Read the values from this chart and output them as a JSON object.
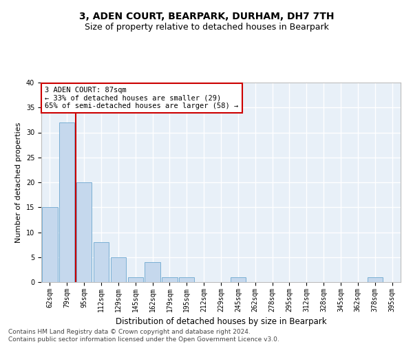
{
  "title": "3, ADEN COURT, BEARPARK, DURHAM, DH7 7TH",
  "subtitle": "Size of property relative to detached houses in Bearpark",
  "xlabel": "Distribution of detached houses by size in Bearpark",
  "ylabel": "Number of detached properties",
  "categories": [
    "62sqm",
    "79sqm",
    "95sqm",
    "112sqm",
    "129sqm",
    "145sqm",
    "162sqm",
    "179sqm",
    "195sqm",
    "212sqm",
    "229sqm",
    "245sqm",
    "262sqm",
    "278sqm",
    "295sqm",
    "312sqm",
    "328sqm",
    "345sqm",
    "362sqm",
    "378sqm",
    "395sqm"
  ],
  "values": [
    15,
    32,
    20,
    8,
    5,
    1,
    4,
    1,
    1,
    0,
    0,
    1,
    0,
    0,
    0,
    0,
    0,
    0,
    0,
    1,
    0
  ],
  "bar_color": "#c5d8ed",
  "bar_edgecolor": "#7aafd4",
  "vline_index": 1.5,
  "vline_color": "#cc0000",
  "annotation_text": "3 ADEN COURT: 87sqm\n← 33% of detached houses are smaller (29)\n65% of semi-detached houses are larger (58) →",
  "annotation_box_color": "#ffffff",
  "annotation_box_edgecolor": "#cc0000",
  "ylim": [
    0,
    40
  ],
  "yticks": [
    0,
    5,
    10,
    15,
    20,
    25,
    30,
    35,
    40
  ],
  "background_color": "#e8f0f8",
  "grid_color": "#ffffff",
  "footer": "Contains HM Land Registry data © Crown copyright and database right 2024.\nContains public sector information licensed under the Open Government Licence v3.0.",
  "title_fontsize": 10,
  "subtitle_fontsize": 9,
  "xlabel_fontsize": 8.5,
  "ylabel_fontsize": 8,
  "tick_fontsize": 7,
  "annot_fontsize": 7.5,
  "footer_fontsize": 6.5
}
